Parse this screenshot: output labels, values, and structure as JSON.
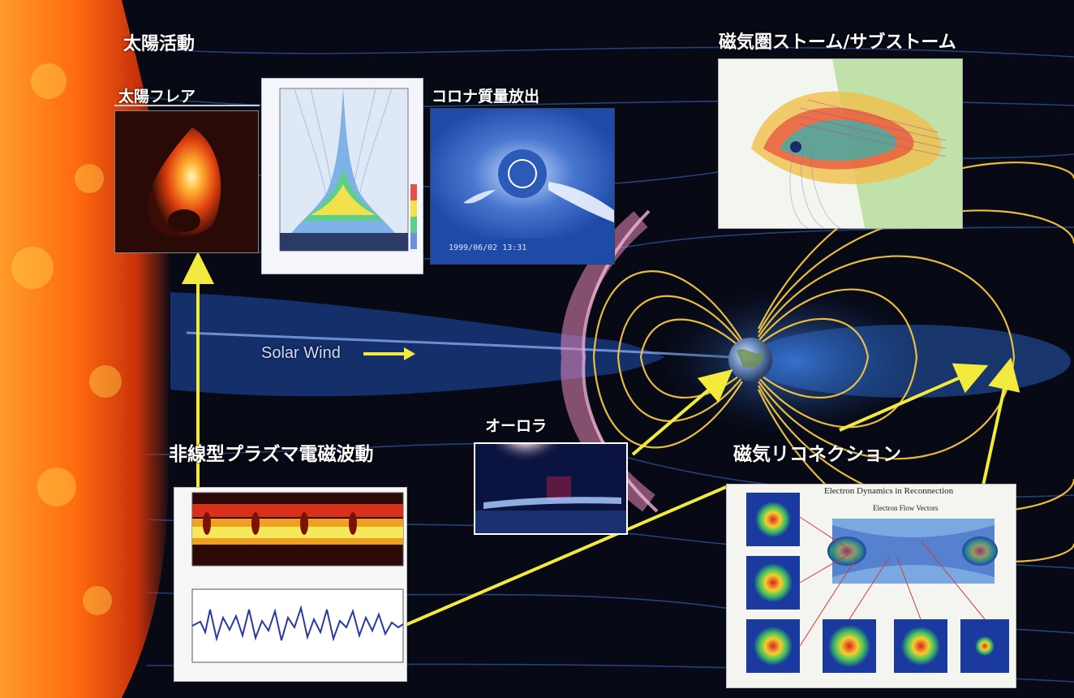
{
  "labels": {
    "solar_activity": "太陽活動",
    "solar_flare": "太陽フレア",
    "cme": "コロナ質量放出",
    "storm": "磁気圏ストーム/サブストーム",
    "solar_wind": "Solar Wind",
    "aurora": "オーロラ",
    "nonlinear_waves": "非線型プラズマ電磁波動",
    "reconnection": "磁気リコネクション"
  },
  "cme_timestamp": "1999/06/02 13:31",
  "reconnection_panel": {
    "title": "Electron Dynamics in Reconnection",
    "subtitle": "Electron Flow Vectors"
  },
  "colors": {
    "sun": "#ff6a10",
    "field_line": "#f5c542",
    "arrow": "#f2ea3c",
    "background": "#070914",
    "plasma_blue": "#2f6fd6",
    "plasma_pink": "#e98ab9"
  }
}
